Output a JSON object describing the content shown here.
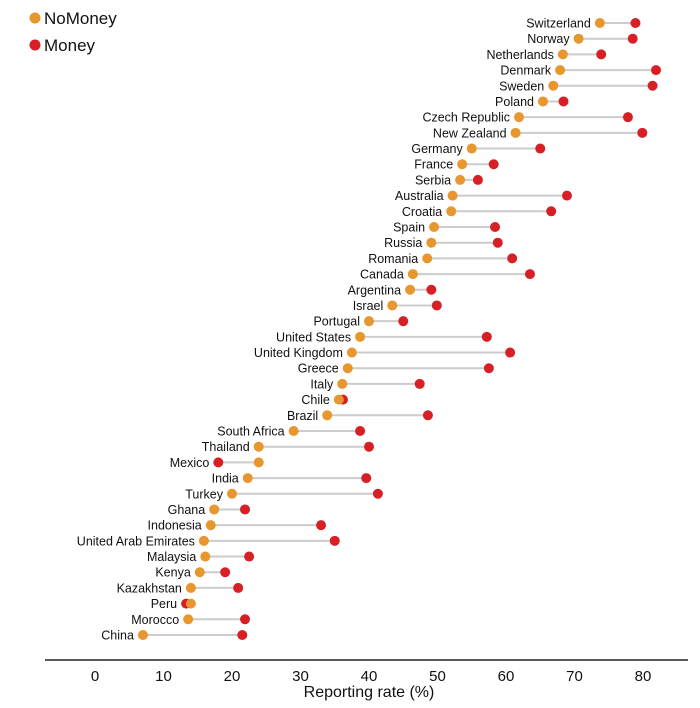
{
  "chart_data": {
    "type": "dumbbell",
    "title": "",
    "xlabel": "Reporting rate (%)",
    "ylabel": "",
    "xlim": [
      -7,
      87
    ],
    "xticks": [
      0,
      10,
      20,
      30,
      40,
      50,
      60,
      70,
      80
    ],
    "grid": false,
    "legend": {
      "placement": "top-left",
      "entries": [
        "NoMoney",
        "Money"
      ]
    },
    "colors": {
      "NoMoney": "#E8962E",
      "Money": "#D71F26",
      "connector": "#CCCCCC"
    },
    "categories": [
      "Switzerland",
      "Norway",
      "Netherlands",
      "Denmark",
      "Sweden",
      "Poland",
      "Czech Republic",
      "New Zealand",
      "Germany",
      "France",
      "Serbia",
      "Australia",
      "Croatia",
      "Spain",
      "Russia",
      "Romania",
      "Canada",
      "Argentina",
      "Israel",
      "Portugal",
      "United States",
      "United Kingdom",
      "Greece",
      "Italy",
      "Chile",
      "Brazil",
      "South Africa",
      "Thailand",
      "Mexico",
      "India",
      "Turkey",
      "Ghana",
      "Indonesia",
      "United Arab Emirates",
      "Malaysia",
      "Kenya",
      "Kazakhstan",
      "Peru",
      "Morocco",
      "China"
    ],
    "series": [
      {
        "name": "NoMoney",
        "values": [
          73.7,
          70.6,
          68.3,
          67.9,
          66.9,
          65.4,
          61.9,
          61.4,
          55.0,
          53.6,
          53.3,
          52.2,
          52.0,
          49.5,
          49.1,
          48.5,
          46.4,
          46.0,
          43.4,
          40.0,
          38.7,
          37.5,
          36.9,
          36.1,
          35.6,
          33.9,
          29.0,
          23.9,
          23.9,
          22.3,
          20.0,
          17.4,
          16.9,
          15.9,
          16.1,
          15.3,
          14.0,
          14.0,
          13.6,
          7.0
        ]
      },
      {
        "name": "Money",
        "values": [
          78.9,
          78.5,
          73.9,
          81.9,
          81.4,
          68.4,
          77.8,
          79.9,
          65.0,
          58.2,
          55.9,
          68.9,
          66.6,
          58.4,
          58.8,
          60.9,
          63.5,
          49.1,
          49.9,
          45.0,
          57.2,
          60.6,
          57.5,
          47.4,
          36.2,
          48.6,
          38.7,
          40.0,
          18.0,
          39.6,
          41.3,
          21.9,
          33.0,
          35.0,
          22.5,
          19.0,
          20.9,
          13.3,
          21.9,
          21.5
        ]
      }
    ]
  }
}
